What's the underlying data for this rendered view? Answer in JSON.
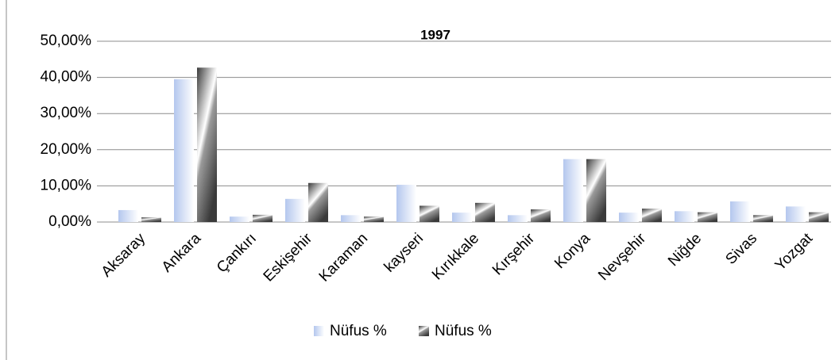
{
  "chart_data": {
    "type": "bar",
    "title": "1997",
    "categories": [
      "Aksaray",
      "Ankara",
      "Çankırı",
      "Eskişehir",
      "Karaman",
      "kayseri",
      "Kırıkkale",
      "Kırşehir",
      "Konya",
      "Nevşehir",
      "Niğde",
      "Sivas",
      "Yozgat"
    ],
    "series": [
      {
        "name": "Nüfus %",
        "color": "#b4c7ee",
        "values": [
          3.3,
          39.5,
          1.5,
          6.4,
          1.9,
          10.3,
          2.6,
          1.9,
          17.4,
          2.6,
          3.0,
          5.7,
          4.3
        ]
      },
      {
        "name": "Nüfus %",
        "color": "#3a3a3a",
        "values": [
          1.3,
          42.7,
          2.0,
          10.8,
          1.5,
          4.5,
          5.3,
          3.5,
          17.4,
          3.7,
          2.7,
          1.9,
          2.7
        ]
      }
    ],
    "ylim": [
      0,
      50
    ],
    "yticks": [
      {
        "value": 0,
        "label": "0,00%"
      },
      {
        "value": 10,
        "label": "10,00%"
      },
      {
        "value": 20,
        "label": "20,00%"
      },
      {
        "value": 30,
        "label": "30,00%"
      },
      {
        "value": 40,
        "label": "40,00%"
      },
      {
        "value": 50,
        "label": "50,00%"
      }
    ],
    "grid": true
  }
}
